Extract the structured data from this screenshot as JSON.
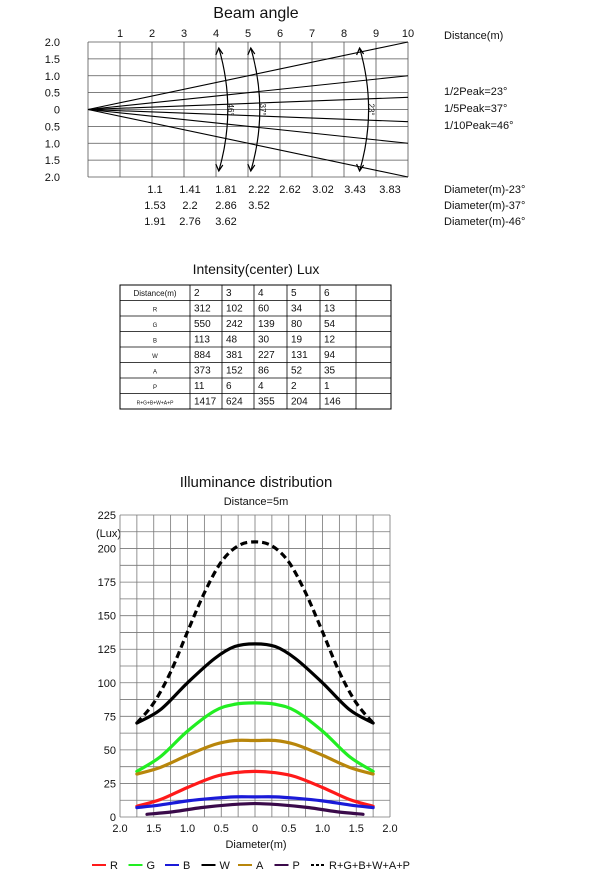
{
  "beam_chart": {
    "title": "Beam angle",
    "distance_label": "Distance(m)",
    "distance_ticks": [
      "1",
      "2",
      "3",
      "4",
      "5",
      "6",
      "7",
      "8",
      "9",
      "10"
    ],
    "offset_ticks": [
      "2.0",
      "1.5",
      "1.0",
      "0.5",
      "0",
      "0.5",
      "1.0",
      "1.5",
      "2.0"
    ],
    "arc_labels": [
      "46°",
      "37°",
      "23°"
    ],
    "peak_labels": [
      "1/2Peak=23°",
      "1/5Peak=37°",
      "1/10Peak=46°"
    ],
    "diameter_rows": [
      {
        "values": [
          "1.1",
          "1.41",
          "1.81",
          "2.22",
          "2.62",
          "3.02",
          "3.43",
          "3.83"
        ],
        "label": "Diameter(m)-23°"
      },
      {
        "values": [
          "1.53",
          "2.2",
          "2.86",
          "3.52"
        ],
        "label": "Diameter(m)-37°"
      },
      {
        "values": [
          "1.91",
          "2.76",
          "3.62"
        ],
        "label": "Diameter(m)-46°"
      }
    ],
    "colors": {
      "line": "#000000",
      "grid": "#555555"
    }
  },
  "intensity_table": {
    "title": "Intensity(center) Lux",
    "header": [
      "Distance(m)",
      "2",
      "3",
      "4",
      "5",
      "6",
      ""
    ],
    "rows": [
      [
        "R",
        "312",
        "102",
        "60",
        "34",
        "13",
        ""
      ],
      [
        "G",
        "550",
        "242",
        "139",
        "80",
        "54",
        ""
      ],
      [
        "B",
        "113",
        "48",
        "30",
        "19",
        "12",
        ""
      ],
      [
        "W",
        "884",
        "381",
        "227",
        "131",
        "94",
        ""
      ],
      [
        "A",
        "373",
        "152",
        "86",
        "52",
        "35",
        ""
      ],
      [
        "P",
        "11",
        "6",
        "4",
        "2",
        "1",
        ""
      ],
      [
        "R+G+B+W+A+P",
        "1417",
        "624",
        "355",
        "204",
        "146",
        ""
      ]
    ]
  },
  "chart_data": [
    {
      "type": "line",
      "title": "Beam angle",
      "xlabel": "Distance(m)",
      "xlim": [
        0,
        10
      ],
      "ylim": [
        -2.0,
        2.0
      ],
      "series": [
        {
          "name": "1/2Peak=23°",
          "x": [
            0,
            10
          ],
          "y_upper": [
            0,
            0.36
          ],
          "y_lower": [
            0,
            -0.36
          ]
        },
        {
          "name": "1/5Peak=37°",
          "x": [
            0,
            10
          ],
          "y_upper": [
            0,
            1.0
          ],
          "y_lower": [
            0,
            -1.0
          ]
        },
        {
          "name": "1/10Peak=46°",
          "x": [
            0,
            10
          ],
          "y_upper": [
            0,
            2.0
          ],
          "y_lower": [
            0,
            -2.0
          ]
        }
      ],
      "grid": true
    },
    {
      "type": "line",
      "title": "Illuminance distribution",
      "subtitle": "Distance=5m",
      "xlabel": "Diameter(m)",
      "ylabel": "(Lux)",
      "xlim": [
        -2.0,
        2.0
      ],
      "ylim": [
        0,
        225
      ],
      "x_ticks": [
        "2.0",
        "1.5",
        "1.0",
        "0.5",
        "0",
        "0.5",
        "1.0",
        "1.5",
        "2.0"
      ],
      "y_ticks": [
        "0",
        "25",
        "50",
        "75",
        "100",
        "125",
        "150",
        "175",
        "200",
        "225"
      ],
      "grid": true,
      "legend_position": "bottom",
      "series": [
        {
          "name": "R",
          "color": "#ff1a1a",
          "dash": "solid",
          "x": [
            -1.75,
            -1.4,
            -1.0,
            -0.6,
            -0.3,
            0,
            0.3,
            0.6,
            1.0,
            1.4,
            1.75
          ],
          "y": [
            8,
            13,
            22,
            30,
            33,
            34,
            33,
            30,
            22,
            13,
            8
          ]
        },
        {
          "name": "G",
          "color": "#22ee22",
          "dash": "solid",
          "x": [
            -1.75,
            -1.4,
            -1.0,
            -0.6,
            -0.3,
            0,
            0.3,
            0.6,
            1.0,
            1.4,
            1.75
          ],
          "y": [
            34,
            45,
            64,
            79,
            84,
            85,
            84,
            79,
            64,
            45,
            34
          ]
        },
        {
          "name": "B",
          "color": "#1a1ad8",
          "dash": "solid",
          "x": [
            -1.75,
            -1.4,
            -1.0,
            -0.6,
            -0.3,
            0,
            0.3,
            0.6,
            1.0,
            1.4,
            1.75
          ],
          "y": [
            7,
            9,
            12,
            14,
            15,
            15,
            15,
            14,
            12,
            9,
            7
          ]
        },
        {
          "name": "W",
          "color": "#000000",
          "dash": "solid",
          "x": [
            -1.75,
            -1.4,
            -1.0,
            -0.6,
            -0.3,
            0,
            0.3,
            0.6,
            1.0,
            1.4,
            1.75
          ],
          "y": [
            70,
            80,
            100,
            118,
            127,
            129,
            127,
            118,
            100,
            80,
            70
          ]
        },
        {
          "name": "A",
          "color": "#b8860b",
          "dash": "solid",
          "x": [
            -1.75,
            -1.4,
            -1.0,
            -0.6,
            -0.3,
            0,
            0.3,
            0.6,
            1.0,
            1.4,
            1.75
          ],
          "y": [
            32,
            37,
            46,
            54,
            57,
            57,
            57,
            54,
            46,
            37,
            32
          ]
        },
        {
          "name": "P",
          "color": "#3a0a4a",
          "dash": "solid",
          "x": [
            -1.6,
            -1.2,
            -0.8,
            -0.4,
            0,
            0.4,
            0.8,
            1.2,
            1.6
          ],
          "y": [
            2,
            4,
            7,
            9,
            10,
            9,
            7,
            4,
            2
          ]
        },
        {
          "name": "R+G+B+W+A+P",
          "color": "#000000",
          "dash": "dashed",
          "x": [
            -1.75,
            -1.5,
            -1.25,
            -1.0,
            -0.75,
            -0.5,
            -0.25,
            0,
            0.25,
            0.5,
            0.75,
            1.0,
            1.25,
            1.5,
            1.75
          ],
          "y": [
            70,
            85,
            108,
            138,
            167,
            190,
            202,
            205,
            202,
            190,
            167,
            138,
            108,
            85,
            70
          ]
        }
      ]
    }
  ]
}
